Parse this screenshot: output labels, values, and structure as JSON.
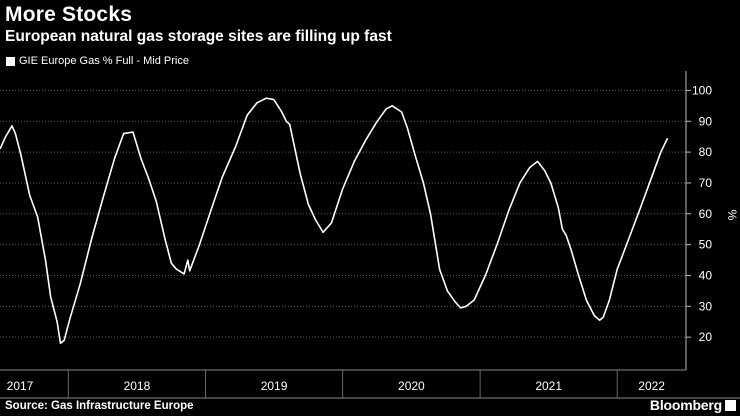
{
  "title": "More Stocks",
  "subtitle": "European natural gas storage sites are filling up fast",
  "legend": {
    "label": "GIE Europe Gas % Full - Mid Price",
    "swatch_color": "#ffffff"
  },
  "footer": {
    "source": "Source: Gas Infrastructure Europe",
    "brand": "Bloomberg"
  },
  "chart_data": {
    "type": "line",
    "title": "More Stocks",
    "subtitle": "European natural gas storage sites are filling up fast",
    "ylabel": "%",
    "ylim": [
      10,
      105
    ],
    "yticks": [
      20,
      30,
      40,
      50,
      60,
      70,
      80,
      90,
      100
    ],
    "xticks": [
      "2017",
      "2018",
      "2019",
      "2020",
      "2021",
      "2022"
    ],
    "grid": true,
    "legend_position": "top-left",
    "series": [
      {
        "name": "GIE Europe Gas % Full - Mid Price",
        "color": "#ffffff",
        "points": [
          [
            "2016-12-31",
            81
          ],
          [
            "2017-01-15",
            85
          ],
          [
            "2017-02-01",
            88.5
          ],
          [
            "2017-02-10",
            86
          ],
          [
            "2017-02-25",
            79
          ],
          [
            "2017-03-20",
            66
          ],
          [
            "2017-04-10",
            59
          ],
          [
            "2017-05-01",
            45
          ],
          [
            "2017-05-15",
            33
          ],
          [
            "2017-06-01",
            25
          ],
          [
            "2017-06-10",
            18
          ],
          [
            "2017-06-20",
            19
          ],
          [
            "2017-07-05",
            26
          ],
          [
            "2017-08-01",
            37
          ],
          [
            "2017-09-01",
            52
          ],
          [
            "2017-10-01",
            65
          ],
          [
            "2017-11-01",
            78
          ],
          [
            "2017-11-25",
            86
          ],
          [
            "2017-12-20",
            86.5
          ],
          [
            "2018-01-10",
            78
          ],
          [
            "2018-02-01",
            71
          ],
          [
            "2018-02-20",
            64
          ],
          [
            "2018-03-15",
            52
          ],
          [
            "2018-04-01",
            44
          ],
          [
            "2018-04-15",
            42
          ],
          [
            "2018-05-05",
            40.5
          ],
          [
            "2018-05-15",
            45
          ],
          [
            "2018-05-20",
            41.5
          ],
          [
            "2018-06-15",
            50
          ],
          [
            "2018-07-15",
            61
          ],
          [
            "2018-08-15",
            72
          ],
          [
            "2018-09-20",
            82
          ],
          [
            "2018-10-20",
            92
          ],
          [
            "2018-11-15",
            96
          ],
          [
            "2018-12-10",
            97.5
          ],
          [
            "2018-12-30",
            97
          ],
          [
            "2019-01-20",
            93
          ],
          [
            "2019-02-01",
            90
          ],
          [
            "2019-02-10",
            89
          ],
          [
            "2019-03-10",
            73
          ],
          [
            "2019-04-01",
            63
          ],
          [
            "2019-04-20",
            58
          ],
          [
            "2019-05-10",
            54
          ],
          [
            "2019-06-01",
            57
          ],
          [
            "2019-07-01",
            68
          ],
          [
            "2019-08-01",
            77
          ],
          [
            "2019-09-01",
            84
          ],
          [
            "2019-10-01",
            90
          ],
          [
            "2019-10-25",
            94
          ],
          [
            "2019-11-10",
            95
          ],
          [
            "2019-12-05",
            93
          ],
          [
            "2019-12-20",
            88
          ],
          [
            "2020-01-10",
            79
          ],
          [
            "2020-02-01",
            70
          ],
          [
            "2020-02-20",
            60
          ],
          [
            "2020-03-15",
            42
          ],
          [
            "2020-04-05",
            35
          ],
          [
            "2020-04-25",
            31.5
          ],
          [
            "2020-05-10",
            29.5
          ],
          [
            "2020-05-25",
            30
          ],
          [
            "2020-06-15",
            32
          ],
          [
            "2020-07-15",
            40
          ],
          [
            "2020-08-15",
            50
          ],
          [
            "2020-09-15",
            61
          ],
          [
            "2020-10-15",
            70
          ],
          [
            "2020-11-10",
            75
          ],
          [
            "2020-12-01",
            77
          ],
          [
            "2020-12-20",
            74
          ],
          [
            "2021-01-05",
            70
          ],
          [
            "2021-01-25",
            62
          ],
          [
            "2021-02-05",
            55
          ],
          [
            "2021-02-15",
            53
          ],
          [
            "2021-03-01",
            48
          ],
          [
            "2021-03-20",
            40
          ],
          [
            "2021-04-10",
            32
          ],
          [
            "2021-05-01",
            27
          ],
          [
            "2021-05-15",
            25.5
          ],
          [
            "2021-05-25",
            26.5
          ],
          [
            "2021-06-10",
            32
          ],
          [
            "2021-07-01",
            42
          ],
          [
            "2021-08-01",
            52
          ],
          [
            "2021-09-01",
            62
          ],
          [
            "2021-10-01",
            72
          ],
          [
            "2021-10-25",
            80
          ],
          [
            "2021-11-12",
            84.5
          ]
        ]
      }
    ],
    "x_axis_start": "2016-12-31",
    "x_axis_end": "2021-12-31"
  }
}
